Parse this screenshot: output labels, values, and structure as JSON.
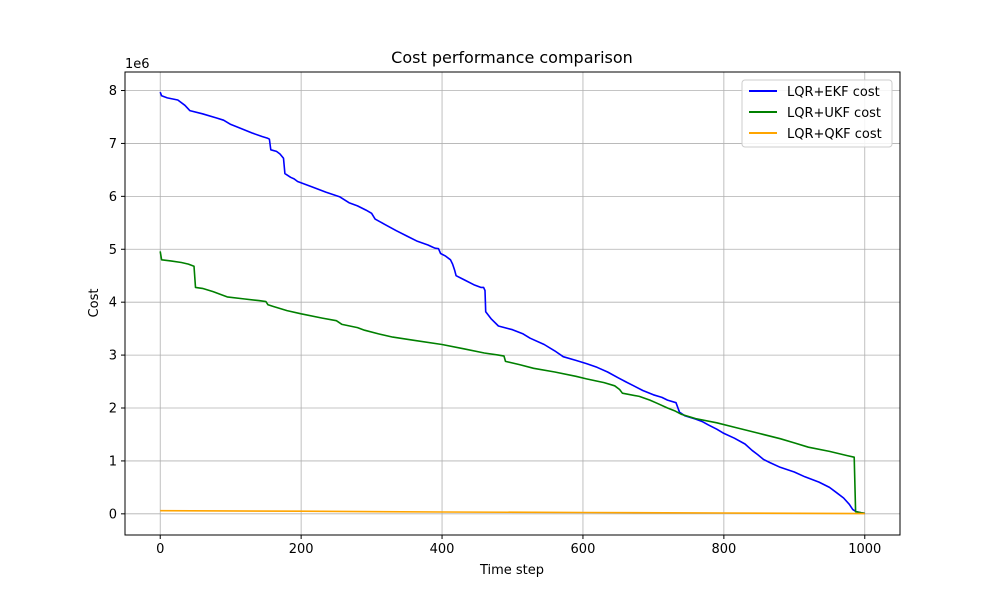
{
  "chart_data": {
    "type": "line",
    "title": "Cost performance comparison",
    "xlabel": "Time step",
    "ylabel": "Cost",
    "y_offset_label": "1e6",
    "xlim": [
      -50,
      1050
    ],
    "ylim": [
      -0.4,
      8.35
    ],
    "xticks": [
      0,
      200,
      400,
      600,
      800,
      1000
    ],
    "yticks": [
      0,
      1,
      2,
      3,
      4,
      5,
      6,
      7,
      8
    ],
    "grid": true,
    "legend_position": "top-right",
    "series": [
      {
        "name": "LQR+EKF cost",
        "color": "#0000ff",
        "points": [
          [
            0,
            7.97
          ],
          [
            2,
            7.9
          ],
          [
            10,
            7.86
          ],
          [
            25,
            7.82
          ],
          [
            35,
            7.72
          ],
          [
            42,
            7.62
          ],
          [
            60,
            7.56
          ],
          [
            80,
            7.48
          ],
          [
            90,
            7.44
          ],
          [
            100,
            7.36
          ],
          [
            115,
            7.28
          ],
          [
            130,
            7.2
          ],
          [
            145,
            7.13
          ],
          [
            152,
            7.1
          ],
          [
            155,
            7.08
          ],
          [
            157,
            6.88
          ],
          [
            165,
            6.85
          ],
          [
            170,
            6.8
          ],
          [
            175,
            6.72
          ],
          [
            177,
            6.43
          ],
          [
            185,
            6.36
          ],
          [
            190,
            6.33
          ],
          [
            195,
            6.28
          ],
          [
            215,
            6.18
          ],
          [
            235,
            6.08
          ],
          [
            255,
            5.99
          ],
          [
            268,
            5.88
          ],
          [
            280,
            5.82
          ],
          [
            292,
            5.74
          ],
          [
            300,
            5.68
          ],
          [
            305,
            5.57
          ],
          [
            320,
            5.46
          ],
          [
            335,
            5.35
          ],
          [
            350,
            5.25
          ],
          [
            365,
            5.15
          ],
          [
            380,
            5.08
          ],
          [
            385,
            5.05
          ],
          [
            390,
            5.02
          ],
          [
            395,
            5.01
          ],
          [
            398,
            4.92
          ],
          [
            405,
            4.87
          ],
          [
            412,
            4.8
          ],
          [
            415,
            4.72
          ],
          [
            418,
            4.6
          ],
          [
            420,
            4.5
          ],
          [
            432,
            4.42
          ],
          [
            445,
            4.33
          ],
          [
            455,
            4.28
          ],
          [
            459,
            4.28
          ],
          [
            461,
            4.22
          ],
          [
            462,
            3.82
          ],
          [
            470,
            3.68
          ],
          [
            480,
            3.55
          ],
          [
            500,
            3.48
          ],
          [
            515,
            3.4
          ],
          [
            525,
            3.32
          ],
          [
            545,
            3.2
          ],
          [
            560,
            3.08
          ],
          [
            572,
            2.97
          ],
          [
            590,
            2.9
          ],
          [
            605,
            2.84
          ],
          [
            620,
            2.77
          ],
          [
            635,
            2.68
          ],
          [
            650,
            2.57
          ],
          [
            660,
            2.5
          ],
          [
            672,
            2.42
          ],
          [
            685,
            2.33
          ],
          [
            700,
            2.25
          ],
          [
            712,
            2.2
          ],
          [
            720,
            2.15
          ],
          [
            732,
            2.1
          ],
          [
            737,
            1.92
          ],
          [
            745,
            1.85
          ],
          [
            760,
            1.79
          ],
          [
            770,
            1.74
          ],
          [
            778,
            1.68
          ],
          [
            790,
            1.6
          ],
          [
            800,
            1.52
          ],
          [
            815,
            1.43
          ],
          [
            830,
            1.32
          ],
          [
            840,
            1.2
          ],
          [
            848,
            1.12
          ],
          [
            856,
            1.03
          ],
          [
            865,
            0.97
          ],
          [
            880,
            0.88
          ],
          [
            900,
            0.79
          ],
          [
            915,
            0.7
          ],
          [
            935,
            0.6
          ],
          [
            950,
            0.5
          ],
          [
            960,
            0.4
          ],
          [
            970,
            0.3
          ],
          [
            978,
            0.18
          ],
          [
            983,
            0.08
          ],
          [
            988,
            0.04
          ],
          [
            995,
            0.02
          ],
          [
            1000,
            0.01
          ]
        ]
      },
      {
        "name": "LQR+UKF cost",
        "color": "#008000",
        "points": [
          [
            0,
            4.96
          ],
          [
            2,
            4.8
          ],
          [
            15,
            4.78
          ],
          [
            30,
            4.75
          ],
          [
            40,
            4.72
          ],
          [
            48,
            4.68
          ],
          [
            50,
            4.28
          ],
          [
            60,
            4.26
          ],
          [
            75,
            4.2
          ],
          [
            85,
            4.15
          ],
          [
            95,
            4.1
          ],
          [
            120,
            4.06
          ],
          [
            140,
            4.03
          ],
          [
            150,
            4.01
          ],
          [
            153,
            3.95
          ],
          [
            160,
            3.92
          ],
          [
            180,
            3.84
          ],
          [
            200,
            3.78
          ],
          [
            230,
            3.7
          ],
          [
            250,
            3.65
          ],
          [
            258,
            3.58
          ],
          [
            280,
            3.52
          ],
          [
            290,
            3.47
          ],
          [
            310,
            3.4
          ],
          [
            330,
            3.34
          ],
          [
            360,
            3.28
          ],
          [
            400,
            3.2
          ],
          [
            430,
            3.12
          ],
          [
            460,
            3.04
          ],
          [
            480,
            3.0
          ],
          [
            488,
            2.98
          ],
          [
            490,
            2.88
          ],
          [
            510,
            2.82
          ],
          [
            530,
            2.75
          ],
          [
            560,
            2.68
          ],
          [
            590,
            2.6
          ],
          [
            605,
            2.55
          ],
          [
            630,
            2.48
          ],
          [
            645,
            2.42
          ],
          [
            652,
            2.35
          ],
          [
            656,
            2.28
          ],
          [
            680,
            2.22
          ],
          [
            695,
            2.15
          ],
          [
            705,
            2.09
          ],
          [
            720,
            2.0
          ],
          [
            730,
            1.95
          ],
          [
            740,
            1.88
          ],
          [
            760,
            1.8
          ],
          [
            790,
            1.72
          ],
          [
            820,
            1.62
          ],
          [
            850,
            1.52
          ],
          [
            880,
            1.42
          ],
          [
            900,
            1.34
          ],
          [
            920,
            1.26
          ],
          [
            950,
            1.18
          ],
          [
            975,
            1.1
          ],
          [
            985,
            1.07
          ],
          [
            987,
            0.04
          ],
          [
            995,
            0.02
          ],
          [
            1000,
            0.01
          ]
        ]
      },
      {
        "name": "LQR+QKF cost",
        "color": "#ffa500",
        "points": [
          [
            0,
            0.06
          ],
          [
            200,
            0.05
          ],
          [
            400,
            0.035
          ],
          [
            600,
            0.025
          ],
          [
            800,
            0.015
          ],
          [
            1000,
            0.005
          ]
        ]
      }
    ]
  }
}
